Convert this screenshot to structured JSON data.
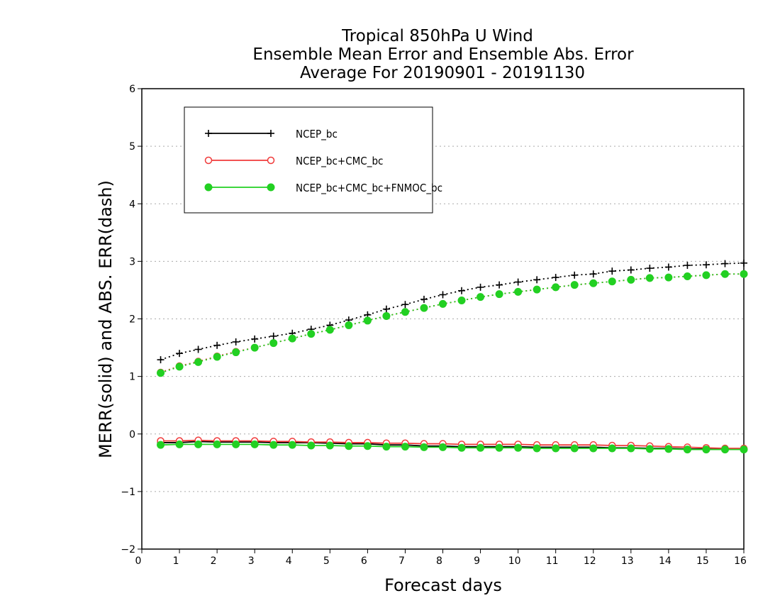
{
  "chart_data": {
    "type": "line",
    "title": [
      "Tropical 850hPa U Wind",
      "Ensemble Mean Error and Ensemble Abs. Error",
      "Average For 20190901 - 20191130"
    ],
    "xlabel": "Forecast days",
    "ylabel": "MERR(solid) and ABS. ERR(dash)",
    "xlim": [
      0,
      16
    ],
    "ylim": [
      -2,
      6
    ],
    "xticks": [
      0,
      1,
      2,
      3,
      4,
      5,
      6,
      7,
      8,
      9,
      10,
      11,
      12,
      13,
      14,
      15,
      16
    ],
    "yticks": [
      -2,
      -1,
      0,
      1,
      2,
      3,
      4,
      5,
      6
    ],
    "grid": "horizontal dotted",
    "legend_position": "top-left",
    "x": [
      0.5,
      1,
      1.5,
      2,
      2.5,
      3,
      3.5,
      4,
      4.5,
      5,
      5.5,
      6,
      6.5,
      7,
      7.5,
      8,
      8.5,
      9,
      9.5,
      10,
      10.5,
      11,
      11.5,
      12,
      12.5,
      13,
      13.5,
      14,
      14.5,
      15,
      15.5,
      16
    ],
    "series": [
      {
        "name": "NCEP_bc",
        "color": "#000000",
        "marker": "plus",
        "merr": [
          -0.15,
          -0.15,
          -0.13,
          -0.14,
          -0.14,
          -0.14,
          -0.15,
          -0.15,
          -0.15,
          -0.16,
          -0.17,
          -0.17,
          -0.19,
          -0.19,
          -0.21,
          -0.21,
          -0.22,
          -0.22,
          -0.22,
          -0.22,
          -0.23,
          -0.23,
          -0.23,
          -0.23,
          -0.24,
          -0.24,
          -0.25,
          -0.25,
          -0.26,
          -0.26,
          -0.27,
          -0.27
        ],
        "abs_err": [
          1.29,
          1.4,
          1.47,
          1.54,
          1.6,
          1.65,
          1.7,
          1.75,
          1.82,
          1.89,
          1.98,
          2.07,
          2.17,
          2.25,
          2.34,
          2.42,
          2.49,
          2.55,
          2.59,
          2.64,
          2.68,
          2.72,
          2.76,
          2.78,
          2.83,
          2.85,
          2.88,
          2.9,
          2.93,
          2.94,
          2.96,
          2.97
        ]
      },
      {
        "name": "NCEP_bc+CMC_bc",
        "color": "#f03a3a",
        "marker": "open-circle",
        "merr": [
          -0.12,
          -0.12,
          -0.11,
          -0.12,
          -0.12,
          -0.12,
          -0.13,
          -0.13,
          -0.14,
          -0.14,
          -0.15,
          -0.15,
          -0.16,
          -0.16,
          -0.17,
          -0.17,
          -0.18,
          -0.18,
          -0.18,
          -0.18,
          -0.19,
          -0.19,
          -0.19,
          -0.19,
          -0.2,
          -0.2,
          -0.21,
          -0.22,
          -0.23,
          -0.24,
          -0.25,
          -0.25
        ],
        "abs_err": [
          1.07,
          1.18,
          1.26,
          1.35,
          1.43,
          1.5,
          1.58,
          1.66,
          1.74,
          1.81,
          1.89,
          1.97,
          2.05,
          2.12,
          2.19,
          2.26,
          2.32,
          2.38,
          2.43,
          2.47,
          2.51,
          2.55,
          2.59,
          2.62,
          2.65,
          2.68,
          2.71,
          2.72,
          2.74,
          2.76,
          2.78,
          2.78
        ]
      },
      {
        "name": "NCEP_bc+CMC_bc+FNMOC_bc",
        "color": "#22d022",
        "marker": "filled-circle",
        "merr": [
          -0.19,
          -0.18,
          -0.18,
          -0.18,
          -0.18,
          -0.18,
          -0.19,
          -0.19,
          -0.2,
          -0.2,
          -0.21,
          -0.21,
          -0.22,
          -0.22,
          -0.23,
          -0.23,
          -0.24,
          -0.24,
          -0.24,
          -0.24,
          -0.25,
          -0.25,
          -0.25,
          -0.25,
          -0.25,
          -0.25,
          -0.26,
          -0.26,
          -0.27,
          -0.27,
          -0.27,
          -0.27
        ],
        "abs_err": [
          1.06,
          1.17,
          1.25,
          1.34,
          1.42,
          1.5,
          1.58,
          1.66,
          1.74,
          1.81,
          1.89,
          1.97,
          2.05,
          2.12,
          2.19,
          2.26,
          2.32,
          2.38,
          2.43,
          2.47,
          2.51,
          2.55,
          2.59,
          2.62,
          2.65,
          2.68,
          2.71,
          2.72,
          2.74,
          2.76,
          2.78,
          2.78
        ]
      }
    ]
  }
}
